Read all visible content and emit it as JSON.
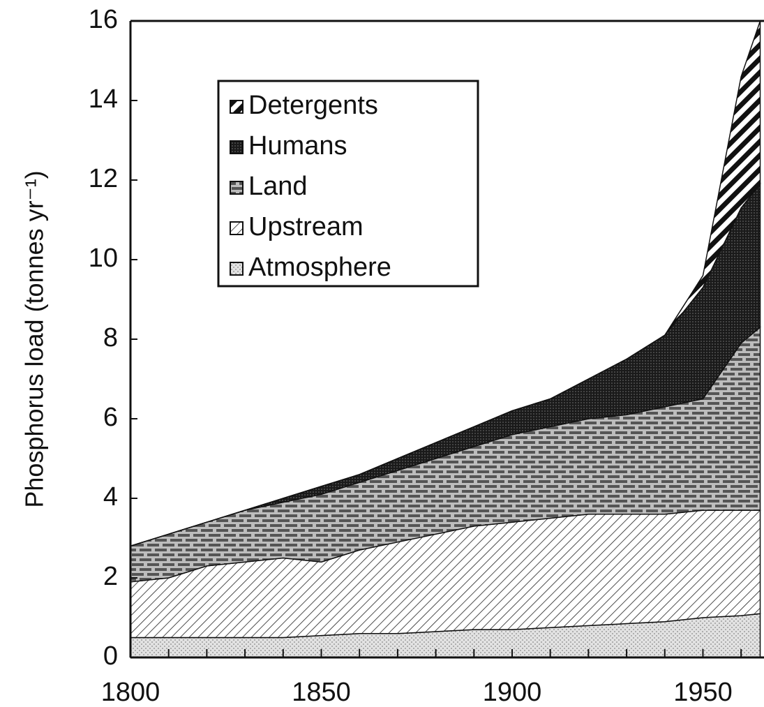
{
  "chart_data": {
    "type": "stacked_area",
    "ylabel": "Phosphorus load (tonnes yr⁻¹)",
    "x": [
      1800,
      1810,
      1820,
      1830,
      1840,
      1850,
      1860,
      1870,
      1880,
      1890,
      1900,
      1910,
      1920,
      1930,
      1940,
      1950,
      1960,
      1965
    ],
    "series": [
      {
        "name": "Atmosphere",
        "color": "#d8d8d8",
        "values": [
          0.5,
          0.5,
          0.5,
          0.5,
          0.5,
          0.55,
          0.6,
          0.6,
          0.65,
          0.7,
          0.7,
          0.75,
          0.8,
          0.85,
          0.9,
          1.0,
          1.05,
          1.1
        ]
      },
      {
        "name": "Upstream",
        "color": "#ffffff",
        "values": [
          1.4,
          1.5,
          1.8,
          1.9,
          2.0,
          1.85,
          2.1,
          2.3,
          2.45,
          2.6,
          2.7,
          2.75,
          2.8,
          2.75,
          2.7,
          2.7,
          2.65,
          2.6
        ]
      },
      {
        "name": "Land",
        "color": "#9a9a9a",
        "values": [
          0.9,
          1.1,
          1.1,
          1.3,
          1.4,
          1.7,
          1.7,
          1.8,
          1.9,
          2.0,
          2.2,
          2.3,
          2.4,
          2.5,
          2.7,
          2.8,
          4.2,
          4.6
        ]
      },
      {
        "name": "Humans",
        "color": "#2a2a2a",
        "values": [
          0,
          0,
          0,
          0,
          0.1,
          0.2,
          0.2,
          0.3,
          0.4,
          0.5,
          0.6,
          0.7,
          1.0,
          1.4,
          1.8,
          2.8,
          3.4,
          3.6
        ]
      },
      {
        "name": "Detergents",
        "color": "#111111",
        "values": [
          0,
          0,
          0,
          0,
          0,
          0,
          0,
          0,
          0,
          0,
          0,
          0,
          0,
          0,
          0,
          0.3,
          3.3,
          4.1
        ]
      }
    ],
    "xlim": [
      1800,
      1966
    ],
    "xticks": [
      1800,
      1850,
      1900,
      1950
    ],
    "xticks_minor": [
      1810,
      1820,
      1830,
      1840,
      1860,
      1870,
      1880,
      1890,
      1910,
      1920,
      1930,
      1940,
      1960
    ],
    "ylim": [
      0,
      16
    ],
    "yticks": [
      0,
      2,
      4,
      6,
      8,
      10,
      12,
      14,
      16
    ]
  }
}
